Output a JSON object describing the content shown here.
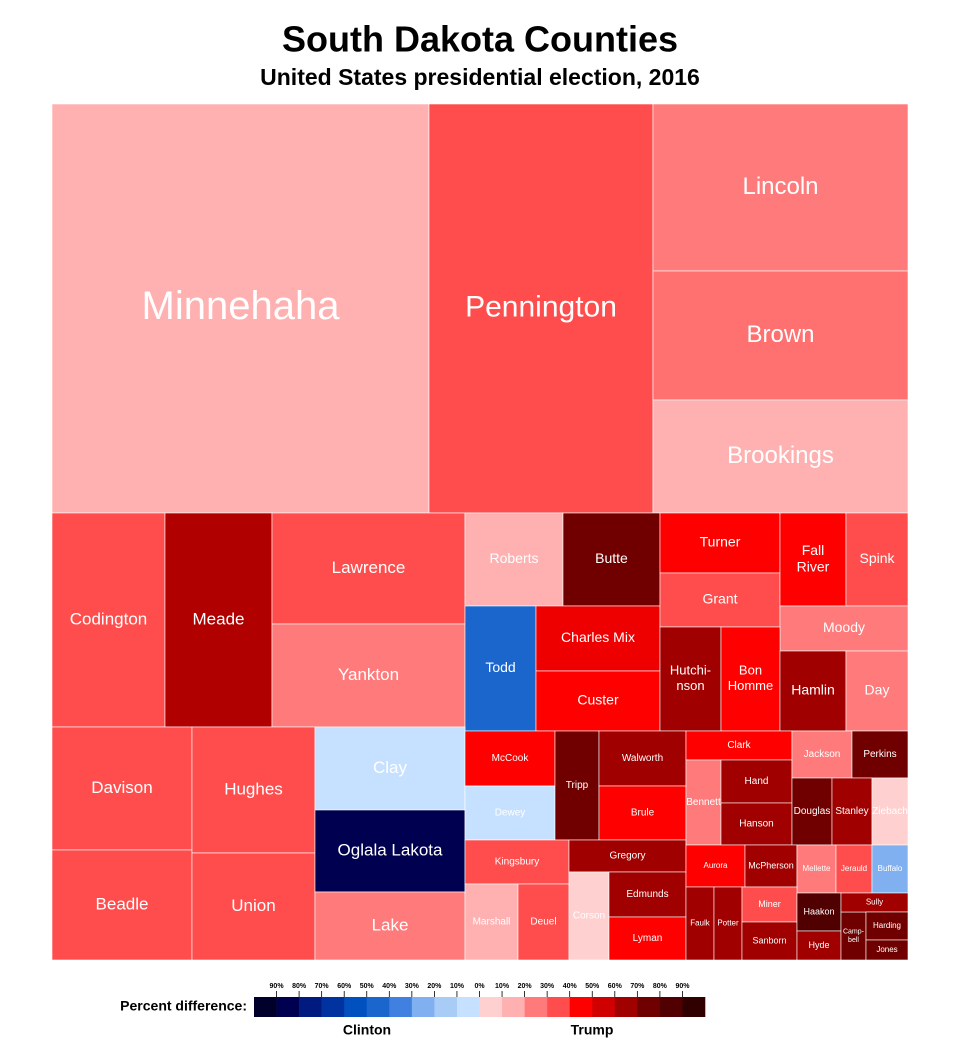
{
  "title": "South Dakota Counties",
  "subtitle": "United States presidential election, 2016",
  "counties": [
    {
      "label": [
        "Minnehaha"
      ],
      "color": "#ffb0b0"
    },
    {
      "label": [
        "Pennington"
      ],
      "color": "#ff4d4d"
    },
    {
      "label": [
        "Lincoln"
      ],
      "color": "#ff7a7a"
    },
    {
      "label": [
        "Brown"
      ],
      "color": "#ff7070"
    },
    {
      "label": [
        "Brookings"
      ],
      "color": "#ffb0b0"
    },
    {
      "label": [
        "Codington"
      ],
      "color": "#ff4d4d"
    },
    {
      "label": [
        "Meade"
      ],
      "color": "#b00000"
    },
    {
      "label": [
        "Lawrence"
      ],
      "color": "#ff4d4d"
    },
    {
      "label": [
        "Yankton"
      ],
      "color": "#ff7a7a"
    },
    {
      "label": [
        "Roberts"
      ],
      "color": "#ffb0b0"
    },
    {
      "label": [
        "Butte"
      ],
      "color": "#700000"
    },
    {
      "label": [
        "Todd"
      ],
      "color": "#1a66cc"
    },
    {
      "label": [
        "Charles Mix"
      ],
      "color": "#ee0000"
    },
    {
      "label": [
        "Custer"
      ],
      "color": "#ff0000"
    },
    {
      "label": [
        "Turner"
      ],
      "color": "#ff0000"
    },
    {
      "label": [
        "Grant"
      ],
      "color": "#ff4d4d"
    },
    {
      "label": [
        "Fall",
        "River"
      ],
      "color": "#ff0000"
    },
    {
      "label": [
        "Spink"
      ],
      "color": "#ff4d4d"
    },
    {
      "label": [
        "Moody"
      ],
      "color": "#ff7a7a"
    },
    {
      "label": [
        "Hutchi-",
        "nson"
      ],
      "color": "#a00000"
    },
    {
      "label": [
        "Bon",
        "Homme"
      ],
      "color": "#ff0000"
    },
    {
      "label": [
        "Hamlin"
      ],
      "color": "#a00000"
    },
    {
      "label": [
        "Day"
      ],
      "color": "#ff7a7a"
    },
    {
      "label": [
        "Davison"
      ],
      "color": "#ff4d4d"
    },
    {
      "label": [
        "Beadle"
      ],
      "color": "#ff4d4d"
    },
    {
      "label": [
        "Hughes"
      ],
      "color": "#ff4d4d"
    },
    {
      "label": [
        "Union"
      ],
      "color": "#ff4d4d"
    },
    {
      "label": [
        "Clay"
      ],
      "color": "#c6e0ff"
    },
    {
      "label": [
        "Oglala Lakota"
      ],
      "color": "#000050"
    },
    {
      "label": [
        "Lake"
      ],
      "color": "#ff7a7a"
    },
    {
      "label": [
        "McCook"
      ],
      "color": "#ff0000"
    },
    {
      "label": [
        "Dewey"
      ],
      "color": "#c6e0ff"
    },
    {
      "label": [
        "Tripp"
      ],
      "color": "#700000"
    },
    {
      "label": [
        "Walworth"
      ],
      "color": "#a00000"
    },
    {
      "label": [
        "Brule"
      ],
      "color": "#ff0000"
    },
    {
      "label": [
        "Kingsbury"
      ],
      "color": "#ff4d4d"
    },
    {
      "label": [
        "Gregory"
      ],
      "color": "#a00000"
    },
    {
      "label": [
        "Marshall"
      ],
      "color": "#ffb0b0"
    },
    {
      "label": [
        "Deuel"
      ],
      "color": "#ff4d4d"
    },
    {
      "label": [
        "Corson"
      ],
      "color": "#ffd0d0"
    },
    {
      "label": [
        "Edmunds"
      ],
      "color": "#a00000"
    },
    {
      "label": [
        "Lyman"
      ],
      "color": "#ff0000"
    },
    {
      "label": [
        "Clark"
      ],
      "color": "#ff0000"
    },
    {
      "label": [
        "Bennett"
      ],
      "color": "#ff7a7a"
    },
    {
      "label": [
        "Hand"
      ],
      "color": "#a00000"
    },
    {
      "label": [
        "Hanson"
      ],
      "color": "#a00000"
    },
    {
      "label": [
        "Jackson"
      ],
      "color": "#ff7a7a"
    },
    {
      "label": [
        "Perkins"
      ],
      "color": "#700000"
    },
    {
      "label": [
        "Douglas"
      ],
      "color": "#700000"
    },
    {
      "label": [
        "Stanley"
      ],
      "color": "#a00000"
    },
    {
      "label": [
        "Ziebach"
      ],
      "color": "#ffd0d0"
    },
    {
      "label": [
        "Aurora"
      ],
      "color": "#ff0000"
    },
    {
      "label": [
        "McPherson"
      ],
      "color": "#a00000"
    },
    {
      "label": [
        "Mellette"
      ],
      "color": "#ff7a7a"
    },
    {
      "label": [
        "Jerauld"
      ],
      "color": "#ff4d4d"
    },
    {
      "label": [
        "Buffalo"
      ],
      "color": "#80b0f0"
    },
    {
      "label": [
        "Faulk"
      ],
      "color": "#a00000"
    },
    {
      "label": [
        "Potter"
      ],
      "color": "#a00000"
    },
    {
      "label": [
        "Miner"
      ],
      "color": "#ff4d4d"
    },
    {
      "label": [
        "Sanborn"
      ],
      "color": "#a00000"
    },
    {
      "label": [
        "Haakon"
      ],
      "color": "#500000"
    },
    {
      "label": [
        "Hyde"
      ],
      "color": "#a00000"
    },
    {
      "label": [
        "Camp-",
        "bell"
      ],
      "color": "#700000"
    },
    {
      "label": [
        "Sully"
      ],
      "color": "#a00000"
    },
    {
      "label": [
        "Harding"
      ],
      "color": "#700000"
    },
    {
      "label": [
        "Jones"
      ],
      "color": "#700000"
    }
  ],
  "legend": {
    "title": "Percent difference:",
    "left_label": "Clinton",
    "right_label": "Trump",
    "ticks": [
      "90%",
      "80%",
      "70%",
      "60%",
      "50%",
      "40%",
      "30%",
      "20%",
      "10%",
      "0%",
      "10%",
      "20%",
      "30%",
      "40%",
      "50%",
      "60%",
      "70%",
      "80%",
      "90%"
    ],
    "colors": [
      "#00002a",
      "#000050",
      "#001a80",
      "#0033a0",
      "#0050c0",
      "#1a66cc",
      "#4080e0",
      "#80b0f0",
      "#a8ccf5",
      "#c6e0ff",
      "#ffd0d0",
      "#ffb0b0",
      "#ff7a7a",
      "#ff4d4d",
      "#ff0000",
      "#d00000",
      "#a00000",
      "#700000",
      "#500000",
      "#300000"
    ]
  }
}
